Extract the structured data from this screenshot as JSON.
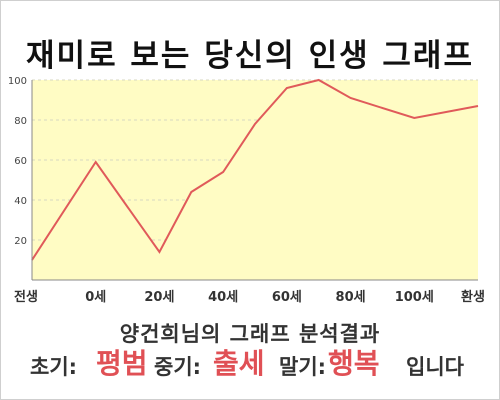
{
  "title": "재미로 보는 당신의 인생 그래프",
  "chart_data": {
    "type": "area",
    "x_categories": [
      "전생",
      "0세",
      "20세",
      "40세",
      "60세",
      "80세",
      "100세",
      "환생"
    ],
    "x_values": [
      -20,
      0,
      20,
      40,
      60,
      80,
      100,
      120
    ],
    "points": [
      {
        "x": -20,
        "y": 10
      },
      {
        "x": 0,
        "y": 59
      },
      {
        "x": 20,
        "y": 14
      },
      {
        "x": 30,
        "y": 44
      },
      {
        "x": 40,
        "y": 54
      },
      {
        "x": 50,
        "y": 78
      },
      {
        "x": 60,
        "y": 96
      },
      {
        "x": 70,
        "y": 100
      },
      {
        "x": 80,
        "y": 91
      },
      {
        "x": 100,
        "y": 81
      },
      {
        "x": 120,
        "y": 87
      }
    ],
    "yticks": [
      20,
      40,
      60,
      80,
      100
    ],
    "ylim": [
      0,
      100
    ],
    "xlim": [
      -20,
      120
    ],
    "grid": true,
    "line_color": "#e05a5a",
    "fill_color": "#fffcc4"
  },
  "result": {
    "name_line": "양건희님의 그래프 분석결과",
    "early_label": "초기:",
    "early_value": "평범",
    "mid_label": "중기:",
    "mid_value": "출세",
    "late_label": "말기:",
    "late_value": "행복",
    "suffix": "입니다"
  }
}
